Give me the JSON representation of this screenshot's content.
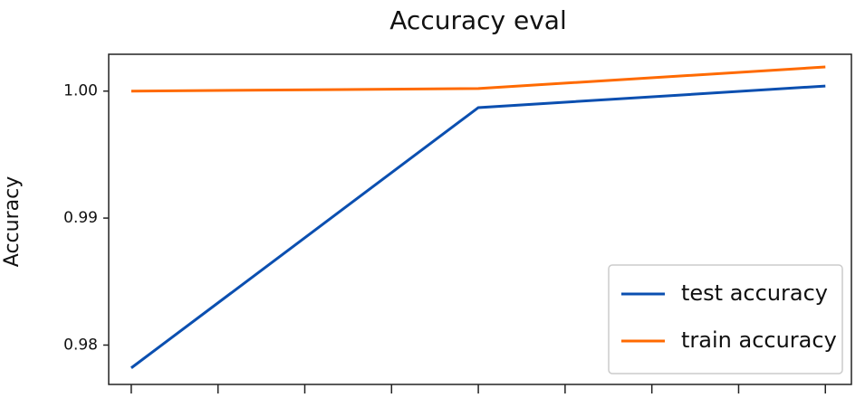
{
  "chart_data": {
    "type": "line",
    "title": "Accuracy eval",
    "y_label": "Accuracy",
    "x": [
      0,
      2,
      4
    ],
    "series": [
      {
        "name": "test accuracy",
        "color": "#0b4fb0",
        "values": [
          0.9782,
          0.9987,
          1.0004
        ]
      },
      {
        "name": "train accuracy",
        "color": "#ff6a00",
        "values": [
          1.0,
          1.0002,
          1.0019
        ]
      }
    ],
    "xlim": [
      -0.13,
      4.15
    ],
    "xticks": [
      0,
      0.5,
      1,
      1.5,
      2,
      2.5,
      3,
      3.5,
      4
    ],
    "ylim": [
      0.9769,
      1.0029
    ],
    "yticks": [
      0.98,
      0.99,
      {
        "value": 1,
        "label": "1.00"
      }
    ],
    "legend": "lower right"
  }
}
